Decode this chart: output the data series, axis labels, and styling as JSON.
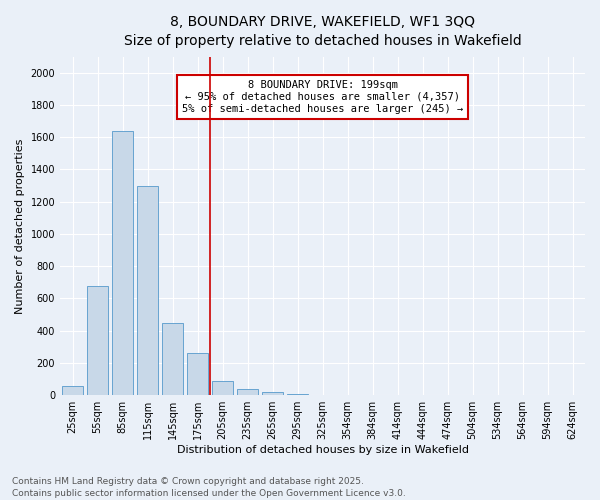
{
  "title_line1": "8, BOUNDARY DRIVE, WAKEFIELD, WF1 3QQ",
  "title_line2": "Size of property relative to detached houses in Wakefield",
  "xlabel": "Distribution of detached houses by size in Wakefield",
  "ylabel": "Number of detached properties",
  "categories": [
    "25sqm",
    "55sqm",
    "85sqm",
    "115sqm",
    "145sqm",
    "175sqm",
    "205sqm",
    "235sqm",
    "265sqm",
    "295sqm",
    "325sqm",
    "354sqm",
    "384sqm",
    "414sqm",
    "444sqm",
    "474sqm",
    "504sqm",
    "534sqm",
    "564sqm",
    "594sqm",
    "624sqm"
  ],
  "values": [
    55,
    680,
    1640,
    1300,
    450,
    260,
    90,
    40,
    20,
    5,
    0,
    0,
    0,
    0,
    0,
    0,
    0,
    0,
    0,
    0,
    0
  ],
  "bar_color": "#c8d8e8",
  "bar_edge_color": "#5599cc",
  "vline_x_index": 6,
  "vline_color": "#cc0000",
  "annotation_title": "8 BOUNDARY DRIVE: 199sqm",
  "annotation_line2": "← 95% of detached houses are smaller (4,357)",
  "annotation_line3": "5% of semi-detached houses are larger (245) →",
  "annotation_box_color": "#cc0000",
  "ylim": [
    0,
    2100
  ],
  "yticks": [
    0,
    200,
    400,
    600,
    800,
    1000,
    1200,
    1400,
    1600,
    1800,
    2000
  ],
  "footnote_line1": "Contains HM Land Registry data © Crown copyright and database right 2025.",
  "footnote_line2": "Contains public sector information licensed under the Open Government Licence v3.0.",
  "bg_color": "#eaf0f8",
  "plot_bg_color": "#eaf0f8",
  "grid_color": "#ffffff",
  "title_fontsize": 10,
  "subtitle_fontsize": 9,
  "axis_label_fontsize": 8,
  "tick_fontsize": 7,
  "footnote_fontsize": 6.5,
  "annotation_fontsize": 7.5
}
